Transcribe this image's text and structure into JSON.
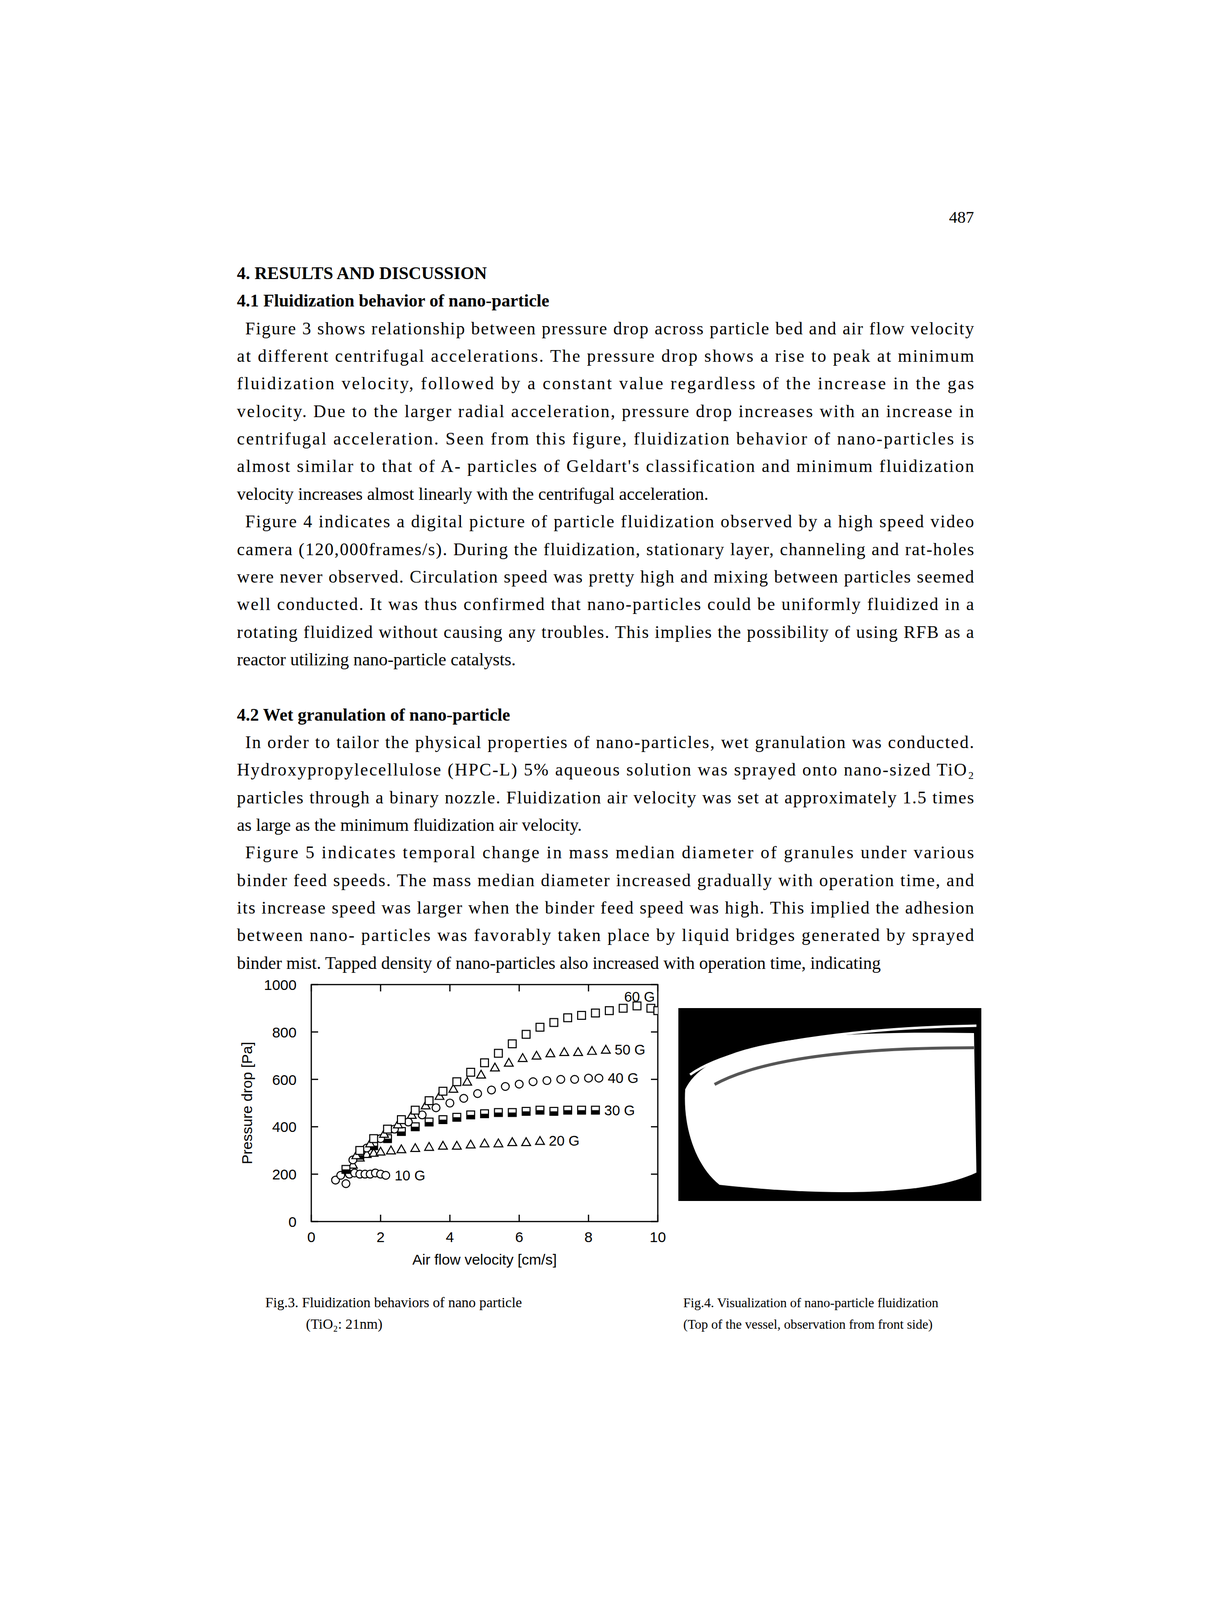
{
  "document": {
    "page_number": "487",
    "body": [
      {
        "kind": "heading",
        "text": "4. RESULTS AND DISCUSSION"
      },
      {
        "kind": "heading",
        "text": "4.1 Fluidization behavior of nano-particle"
      },
      {
        "kind": "paragraph",
        "lines": [
          "Figure 3 shows relationship between pressure drop across particle bed and air flow velocity",
          "at different centrifugal accelerations. The pressure drop shows a rise to peak at minimum",
          "fluidization velocity, followed by a constant value regardless of the increase in the gas",
          "velocity. Due to the larger radial acceleration, pressure drop increases with an increase in",
          "centrifugal acceleration. Seen from this figure, fluidization behavior of nano-particles is",
          "almost similar to that of A- particles of Geldart's classification and minimum fluidization",
          "velocity increases almost linearly with the centrifugal acceleration."
        ]
      },
      {
        "kind": "paragraph",
        "lines": [
          "Figure 4 indicates a digital picture of particle fluidization observed by a high speed video",
          "camera (120,000frames/s). During the fluidization, stationary layer, channeling and rat-holes",
          "were never observed. Circulation speed was pretty high and mixing between particles seemed",
          "well conducted. It was thus confirmed that nano-particles could be uniformly fluidized in a",
          "rotating fluidized without causing any troubles. This implies the possibility of using RFB as a",
          "reactor utilizing nano-particle catalysts."
        ]
      },
      {
        "kind": "heading",
        "text": "4.2 Wet granulation of nano-particle"
      },
      {
        "kind": "paragraph",
        "lines": [
          "In order to tailor the physical properties of nano-particles, wet granulation was conducted.",
          "Hydroxypropylecellulose (HPC-L) 5% aqueous solution was sprayed onto nano-sized TiO₂",
          "particles through a binary nozzle. Fluidization air velocity was set at approximately 1.5 times",
          "as large as the minimum fluidization air velocity."
        ]
      },
      {
        "kind": "paragraph",
        "lines": [
          "Figure 5 indicates temporal change in mass median diameter of granules under various",
          "binder feed speeds. The mass median diameter increased gradually with operation time, and",
          "its increase speed was larger when the binder feed speed was high. This implied the adhesion",
          "between nano- particles was favorably taken place by liquid bridges generated by sprayed",
          "binder mist. Tapped density of nano-particles also increased with operation time, indicating"
        ]
      }
    ],
    "figures": [
      {
        "caption": [
          "Fig.3. Fluidization behaviors of nano particle",
          "(TiO₂: 21nm)"
        ]
      },
      {
        "caption": [
          "Fig.4. Visualization of nano-particle fluidization",
          "(Top of the vessel, observation from front side)"
        ]
      }
    ]
  },
  "chart_data": {
    "type": "scatter",
    "x_label": "Air flow velocity [cm/s]",
    "y_label": "Pressure drop [Pa]",
    "xlim": [
      0,
      10
    ],
    "ylim": [
      0,
      1000
    ],
    "xticks": [
      0,
      2,
      4,
      6,
      8,
      10
    ],
    "yticks": [
      0,
      200,
      400,
      600,
      800,
      1000
    ],
    "series": [
      {
        "name": "10 G",
        "color": "#000000",
        "marker": "circle",
        "x": [
          0.7,
          0.85,
          1.0,
          1.1,
          1.25,
          1.4,
          1.55,
          1.7,
          1.85,
          2.0,
          2.15
        ],
        "values": [
          175,
          195,
          160,
          200,
          205,
          200,
          200,
          200,
          205,
          200,
          195
        ]
      },
      {
        "name": "20 G",
        "color": "#000000",
        "marker": "triangle",
        "x": [
          1.2,
          1.4,
          1.6,
          1.8,
          2.0,
          2.3,
          2.6,
          3.0,
          3.4,
          3.8,
          4.2,
          4.6,
          5.0,
          5.4,
          5.8,
          6.2,
          6.6
        ],
        "values": [
          240,
          270,
          285,
          290,
          295,
          300,
          305,
          310,
          315,
          320,
          320,
          325,
          330,
          330,
          335,
          335,
          340
        ]
      },
      {
        "name": "30 G",
        "color": "#000000",
        "marker": "half-filled-square",
        "x": [
          1.0,
          1.4,
          1.8,
          2.2,
          2.6,
          3.0,
          3.4,
          3.8,
          4.2,
          4.6,
          5.0,
          5.4,
          5.8,
          6.2,
          6.6,
          7.0,
          7.4,
          7.8,
          8.2
        ],
        "values": [
          220,
          280,
          320,
          350,
          380,
          400,
          420,
          430,
          440,
          450,
          455,
          460,
          460,
          465,
          470,
          465,
          470,
          470,
          470
        ]
      },
      {
        "name": "40 G",
        "color": "#000000",
        "marker": "circle",
        "x": [
          1.2,
          1.6,
          2.0,
          2.4,
          2.8,
          3.2,
          3.6,
          4.0,
          4.4,
          4.8,
          5.2,
          5.6,
          6.0,
          6.4,
          6.8,
          7.2,
          7.6,
          8.0,
          8.3
        ],
        "values": [
          260,
          310,
          350,
          390,
          420,
          450,
          480,
          500,
          520,
          540,
          555,
          570,
          580,
          590,
          595,
          600,
          600,
          605,
          605
        ]
      },
      {
        "name": "50 G",
        "color": "#000000",
        "marker": "triangle",
        "x": [
          1.3,
          1.7,
          2.1,
          2.5,
          2.9,
          3.3,
          3.7,
          4.1,
          4.5,
          4.9,
          5.3,
          5.7,
          6.1,
          6.5,
          6.9,
          7.3,
          7.7,
          8.1,
          8.5
        ],
        "values": [
          280,
          330,
          370,
          410,
          450,
          490,
          530,
          560,
          590,
          620,
          650,
          670,
          690,
          700,
          710,
          715,
          715,
          720,
          725
        ]
      },
      {
        "name": "60 G",
        "color": "#000000",
        "marker": "square",
        "x": [
          1.4,
          1.8,
          2.2,
          2.6,
          3.0,
          3.4,
          3.8,
          4.2,
          4.6,
          5.0,
          5.4,
          5.8,
          6.2,
          6.6,
          7.0,
          7.4,
          7.8,
          8.2,
          8.6,
          9.0,
          9.4,
          9.8,
          10.0
        ],
        "values": [
          300,
          350,
          390,
          430,
          470,
          510,
          550,
          590,
          630,
          670,
          710,
          750,
          790,
          820,
          840,
          860,
          870,
          880,
          890,
          900,
          910,
          900,
          890
        ]
      }
    ]
  }
}
